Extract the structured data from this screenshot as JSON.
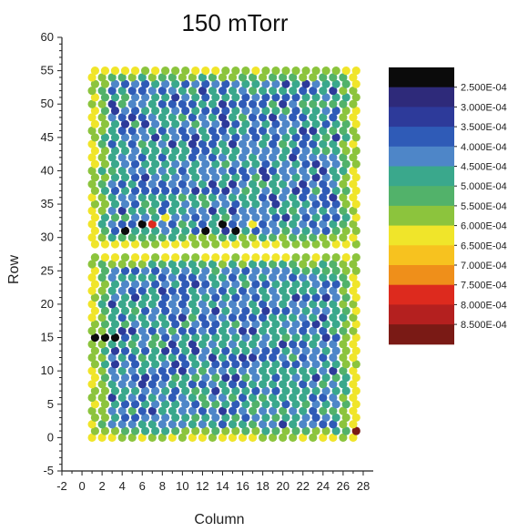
{
  "chart_data": {
    "type": "heatmap",
    "title": "150 mTorr",
    "xlabel": "Column",
    "ylabel": "Row",
    "xlim": [
      -2,
      29
    ],
    "ylim": [
      -5,
      60
    ],
    "x_ticks": [
      -2,
      0,
      2,
      4,
      6,
      8,
      10,
      12,
      14,
      16,
      18,
      20,
      22,
      24,
      26,
      28
    ],
    "y_ticks": [
      -5,
      0,
      5,
      10,
      15,
      20,
      25,
      30,
      35,
      40,
      45,
      50,
      55,
      60
    ],
    "grid": false,
    "legend_position": "right",
    "columns": [
      1,
      27
    ],
    "row_blocks": [
      [
        0,
        27
      ],
      [
        29,
        55
      ]
    ],
    "color_scale": {
      "colors": [
        "#0b0b0b",
        "#2e2a7a",
        "#2d3a9a",
        "#2f5bb7",
        "#4e86c8",
        "#3aa88c",
        "#52b26a",
        "#8cc43d",
        "#f0e52a",
        "#f7c21f",
        "#ef8f1a",
        "#dd2a1e",
        "#b4201f",
        "#7a1a15"
      ],
      "labels": [
        "2.500E-04",
        "3.000E-04",
        "3.500E-04",
        "4.000E-04",
        "4.500E-04",
        "5.000E-04",
        "5.500E-04",
        "6.000E-04",
        "6.500E-04",
        "7.000E-04",
        "7.500E-04",
        "8.000E-04",
        "8.500E-04"
      ]
    },
    "highlight_cells": [
      {
        "x": 1,
        "y": 15,
        "level": 0
      },
      {
        "x": 2,
        "y": 15,
        "level": 0
      },
      {
        "x": 3,
        "y": 15,
        "level": 0
      },
      {
        "x": 6,
        "y": 32,
        "level": 0
      },
      {
        "x": 7,
        "y": 32,
        "level": 11
      },
      {
        "x": 12,
        "y": 31,
        "level": 0
      },
      {
        "x": 14,
        "y": 32,
        "level": 0
      },
      {
        "x": 15,
        "y": 31,
        "level": 0
      },
      {
        "x": 4,
        "y": 31,
        "level": 0
      },
      {
        "x": 27,
        "y": 1,
        "level": 13
      },
      {
        "x": 17,
        "y": 32,
        "level": 8
      },
      {
        "x": 8,
        "y": 33,
        "level": 8
      }
    ]
  }
}
